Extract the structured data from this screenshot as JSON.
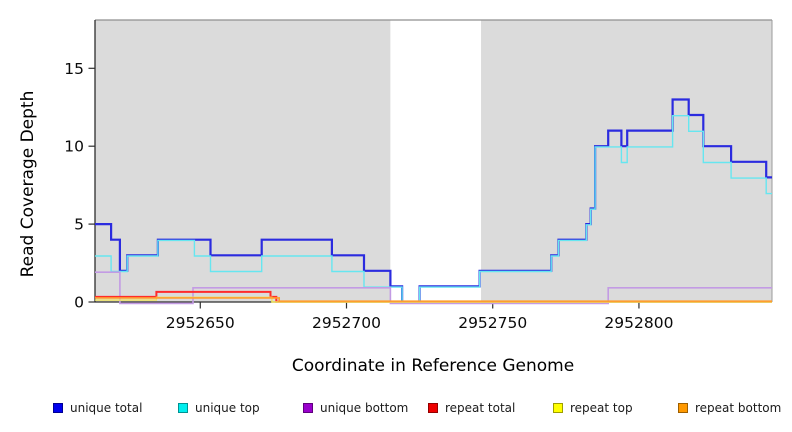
{
  "figure": {
    "ylabel": "Read Coverage Depth",
    "xlabel": "Coordinate in Reference Genome"
  },
  "chart_data": {
    "type": "line",
    "subtype": "step-coverage",
    "title": "",
    "xlabel": "Coordinate in Reference Genome",
    "ylabel": "Read Coverage Depth",
    "xlim": [
      2952614,
      2952845.5
    ],
    "ylim": [
      0,
      18.1
    ],
    "x_ticks": [
      2952650,
      2952700,
      2952750,
      2952800
    ],
    "y_ticks": [
      0,
      5,
      10,
      15
    ],
    "grid": false,
    "legend_position": "bottom",
    "background_bands": {
      "color": "#dbdbdb",
      "note": "shaded reference regions with unshaded gap",
      "regions": [
        [
          2952614,
          2952715
        ],
        [
          2952746,
          2952845.5
        ]
      ]
    },
    "series": [
      {
        "name": "unique total",
        "color": "#0000EE",
        "line_color": "#2B2BDF",
        "steps": [
          [
            2952614,
            5
          ],
          [
            2952619.5,
            4
          ],
          [
            2952622.5,
            2
          ],
          [
            2952625,
            3
          ],
          [
            2952635.5,
            4
          ],
          [
            2952653.5,
            3
          ],
          [
            2952671,
            4
          ],
          [
            2952695,
            3
          ],
          [
            2952706,
            2
          ],
          [
            2952715,
            1
          ],
          [
            2952719,
            0
          ],
          [
            2952725,
            1
          ],
          [
            2952745.5,
            2
          ],
          [
            2952770,
            3
          ],
          [
            2952772.5,
            4
          ],
          [
            2952782,
            5
          ],
          [
            2952783.5,
            6
          ],
          [
            2952785,
            10
          ],
          [
            2952789.5,
            11
          ],
          [
            2952794,
            10
          ],
          [
            2952796,
            11
          ],
          [
            2952811.5,
            13
          ],
          [
            2952817,
            12
          ],
          [
            2952822,
            10
          ],
          [
            2952831.5,
            9
          ],
          [
            2952843.5,
            8
          ]
        ]
      },
      {
        "name": "unique top",
        "color": "#00EEEE",
        "line_color": "#66E6F0",
        "steps": [
          [
            2952614,
            3
          ],
          [
            2952619.5,
            2
          ],
          [
            2952625,
            3
          ],
          [
            2952635.5,
            4
          ],
          [
            2952648,
            3
          ],
          [
            2952653.5,
            2
          ],
          [
            2952671,
            3
          ],
          [
            2952695,
            2
          ],
          [
            2952706,
            1
          ],
          [
            2952719,
            0
          ],
          [
            2952725,
            1
          ],
          [
            2952745.5,
            2
          ],
          [
            2952770,
            3
          ],
          [
            2952772.5,
            4
          ],
          [
            2952782,
            5
          ],
          [
            2952783.5,
            6
          ],
          [
            2952785,
            10
          ],
          [
            2952794,
            9
          ],
          [
            2952796,
            10
          ],
          [
            2952811.5,
            12
          ],
          [
            2952817,
            11
          ],
          [
            2952822,
            9
          ],
          [
            2952831.5,
            8
          ],
          [
            2952843.5,
            7
          ]
        ]
      },
      {
        "name": "unique bottom",
        "color": "#9900CC",
        "line_color": "#C39BE4",
        "steps": [
          [
            2952614,
            2
          ],
          [
            2952622.5,
            0
          ],
          [
            2952647.5,
            1
          ],
          [
            2952715,
            0
          ],
          [
            2952789.5,
            1
          ]
        ]
      },
      {
        "name": "repeat total",
        "color": "#EE0000",
        "line_color": "#FF2B2B",
        "steps": [
          [
            2952614,
            0.33
          ],
          [
            2952635,
            0.65
          ],
          [
            2952674,
            0.33
          ],
          [
            2952676,
            0.02
          ]
        ]
      },
      {
        "name": "repeat top",
        "color": "#FFFF00",
        "line_color": "#EFE35A",
        "steps": [
          [
            2952614,
            0.12
          ],
          [
            2952635,
            0.3
          ],
          [
            2952674.5,
            0
          ]
        ]
      },
      {
        "name": "repeat bottom",
        "color": "#FF9900",
        "line_color": "#FF9D2E",
        "steps": [
          [
            2952614,
            0.26
          ],
          [
            2952677,
            0.05
          ]
        ]
      }
    ]
  }
}
